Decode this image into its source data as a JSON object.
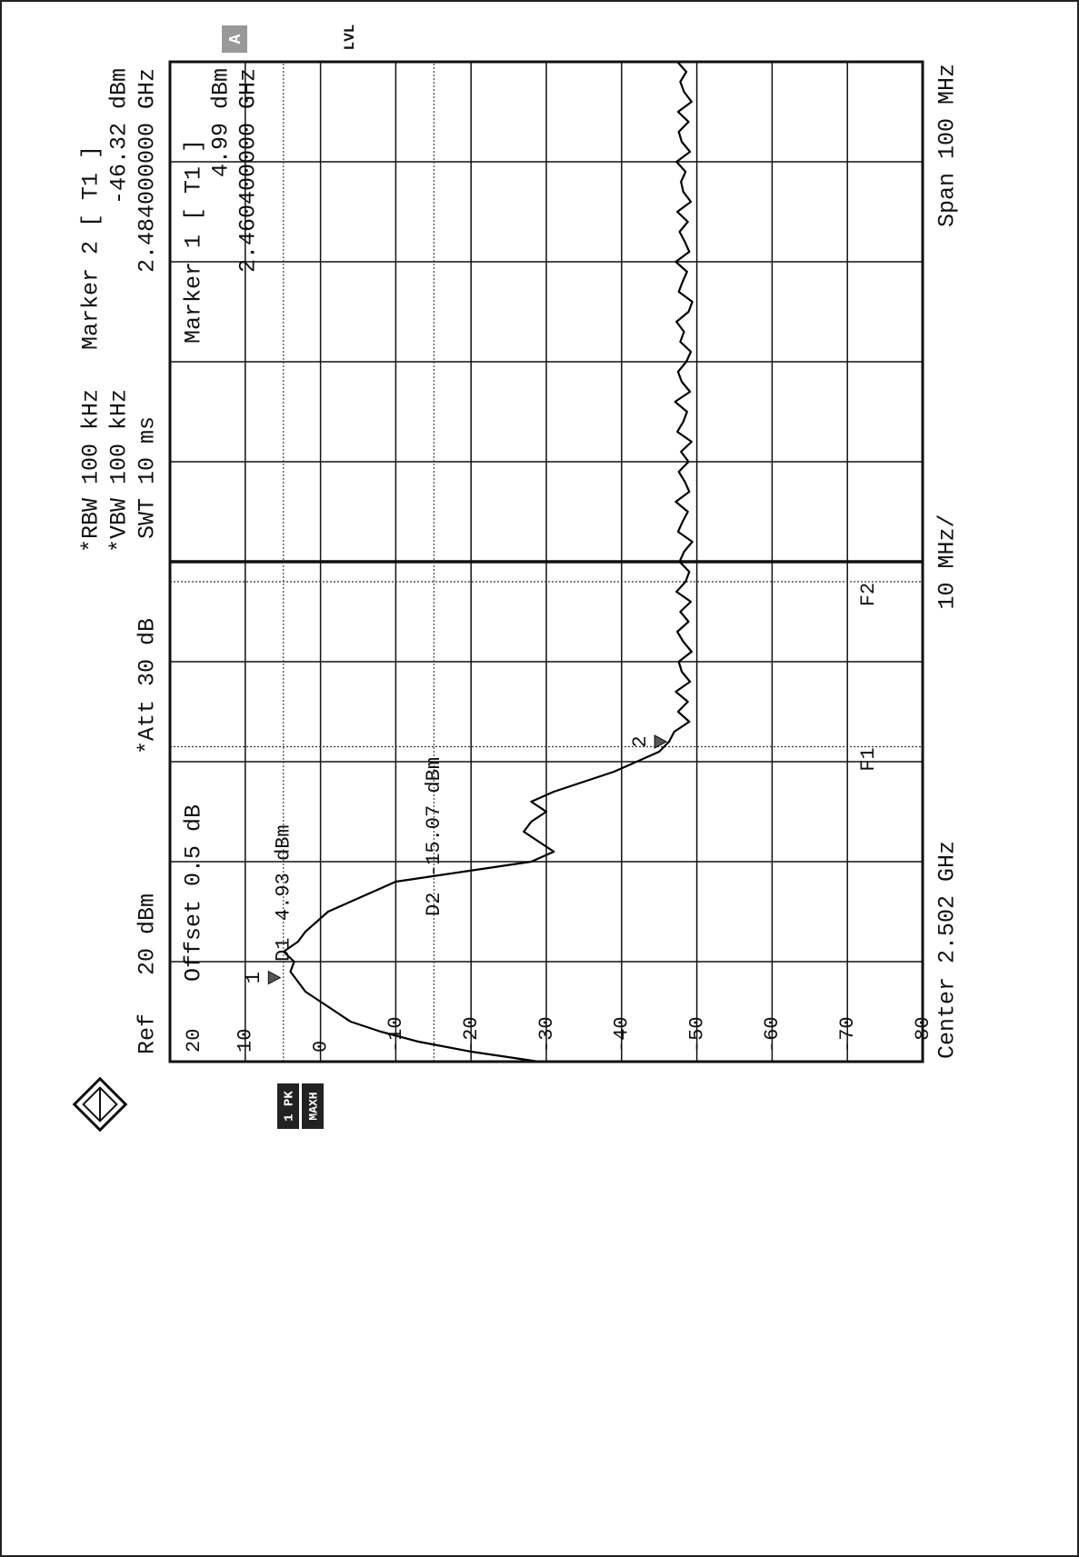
{
  "chart_data": {
    "type": "line",
    "ref": "Ref",
    "ref_level": "20 dBm",
    "offset": "Offset 0.5 dB",
    "att": "*Att 30 dB",
    "rbw": "*RBW 100 kHz",
    "vbw": "*VBW 100 kHz",
    "swt": "SWT 10 ms",
    "center": "Center 2.502 GHz",
    "per_div": "10 MHz/",
    "span": "Span 100 MHz",
    "level_mode": "LVL",
    "screen": "A",
    "trace_info": [
      "1 PK",
      "MAXH"
    ],
    "color": "#000000",
    "xlim": [
      2.452,
      2.552
    ],
    "ylim": [
      -80,
      20
    ],
    "yticks": [
      20,
      10,
      0,
      -10,
      -20,
      -30,
      -40,
      -50,
      -60,
      -70,
      -80
    ],
    "grid": true,
    "x": [
      2.452,
      2.453,
      2.454,
      2.455,
      2.456,
      2.457,
      2.458,
      2.459,
      2.46,
      2.461,
      2.462,
      2.463,
      2.464,
      2.465,
      2.466,
      2.467,
      2.468,
      2.469,
      2.47,
      2.471,
      2.472,
      2.473,
      2.474,
      2.475,
      2.476,
      2.477,
      2.478,
      2.479,
      2.48,
      2.481,
      2.482,
      2.483,
      2.484,
      2.485,
      2.486,
      2.487,
      2.488,
      2.489,
      2.49,
      2.491,
      2.492,
      2.493,
      2.494,
      2.495,
      2.496,
      2.497,
      2.498,
      2.499,
      2.5,
      2.501,
      2.502,
      2.503,
      2.504,
      2.505,
      2.506,
      2.507,
      2.508,
      2.509,
      2.51,
      2.511,
      2.512,
      2.513,
      2.514,
      2.515,
      2.516,
      2.517,
      2.518,
      2.519,
      2.52,
      2.521,
      2.522,
      2.523,
      2.524,
      2.525,
      2.526,
      2.527,
      2.528,
      2.529,
      2.53,
      2.531,
      2.532,
      2.533,
      2.534,
      2.535,
      2.536,
      2.537,
      2.538,
      2.539,
      2.54,
      2.541,
      2.542,
      2.543,
      2.544,
      2.545,
      2.546,
      2.547,
      2.548,
      2.549,
      2.55,
      2.551,
      2.552
    ],
    "values": [
      -29,
      -20,
      -13,
      -8,
      -4,
      -2,
      0,
      2,
      3,
      4,
      3.5,
      4.9,
      3,
      2,
      0.5,
      -1,
      -4,
      -7,
      -10,
      -19,
      -28,
      -31,
      -29,
      -27,
      -28,
      -30,
      -28,
      -31,
      -35,
      -39,
      -42,
      -45,
      -46.3,
      -47,
      -49,
      -47.5,
      -48.8,
      -47.2,
      -49.1,
      -48,
      -47.6,
      -49.3,
      -48.2,
      -47.4,
      -48.9,
      -47.8,
      -49.2,
      -47.3,
      -48.5,
      -49,
      -47.7,
      -48.3,
      -49.4,
      -47.5,
      -48.1,
      -48.8,
      -47.2,
      -49,
      -48.4,
      -47.6,
      -48.9,
      -47.9,
      -49.3,
      -47.4,
      -48.2,
      -48.7,
      -47.1,
      -49.1,
      -48,
      -47.5,
      -48.6,
      -49.2,
      -47.8,
      -48.3,
      -47.3,
      -48.9,
      -49.4,
      -47.6,
      -48.1,
      -48.7,
      -47.2,
      -49,
      -48.4,
      -47.7,
      -48.8,
      -47.4,
      -49.2,
      -48.2,
      -47.9,
      -48.5,
      -47.3,
      -49.1,
      -48,
      -47.6,
      -48.9,
      -47.5,
      -49.3,
      -48.3,
      -47.8,
      -48.6,
      -47.4
    ],
    "markers": [
      {
        "name": "Marker 1 [ T1 ]",
        "symbol": "1",
        "level": 4.99,
        "level_label": "4.99 dBm",
        "freq": 2.4604,
        "freq_label": "2.460400000 GHz"
      },
      {
        "name": "Marker 2 [ T1 ]",
        "symbol": "2",
        "level": -46.32,
        "level_label": "-46.32 dBm",
        "freq": 2.484,
        "freq_label": "2.484000000 GHz"
      }
    ],
    "display_lines": [
      {
        "name": "D1",
        "value": 4.93,
        "value_label": "4.93 dBm"
      },
      {
        "name": "D2",
        "value": -15.07,
        "value_label": "-15.07 dBm"
      }
    ],
    "frequency_lines": [
      {
        "name": "F1",
        "x": 2.4835
      },
      {
        "name": "F2",
        "x": 2.5
      }
    ]
  }
}
